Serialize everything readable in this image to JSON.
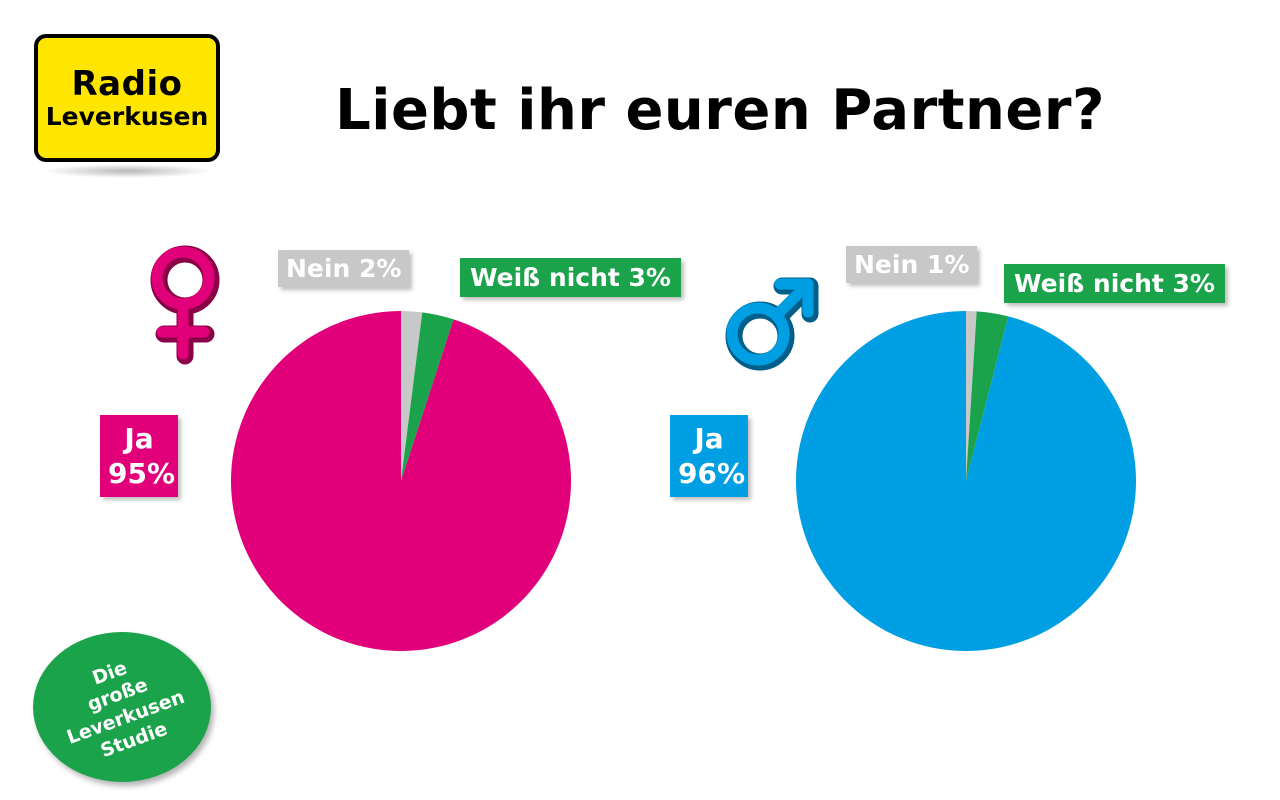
{
  "logo": {
    "line1": "Radio",
    "line2": "Leverkusen"
  },
  "title": "Liebt ihr euren Partner?",
  "badge": {
    "lines": [
      "Die",
      "große",
      "Leverkusen",
      "Studie"
    ]
  },
  "colors": {
    "women": "#e2007a",
    "men": "#009fe3",
    "nein": "#c8c8c8",
    "weiss_nicht": "#1aa34a"
  },
  "chart_data": [
    {
      "type": "pie",
      "group_symbol": "female-symbol-icon",
      "categories": [
        "Ja",
        "Nein",
        "Weiß nicht"
      ],
      "values": [
        95,
        2,
        3
      ],
      "labels": {
        "ja_line1": "Ja",
        "ja_line2": "95%",
        "nein": "Nein 2%",
        "weiss": "Weiß nicht 3%"
      },
      "colors": [
        "#e2007a",
        "#c8c8c8",
        "#1aa34a"
      ]
    },
    {
      "type": "pie",
      "group_symbol": "male-symbol-icon",
      "categories": [
        "Ja",
        "Nein",
        "Weiß nicht"
      ],
      "values": [
        96,
        1,
        3
      ],
      "labels": {
        "ja_line1": "Ja",
        "ja_line2": "96%",
        "nein": "Nein 1%",
        "weiss": "Weiß nicht 3%"
      },
      "colors": [
        "#009fe3",
        "#c8c8c8",
        "#1aa34a"
      ]
    }
  ]
}
